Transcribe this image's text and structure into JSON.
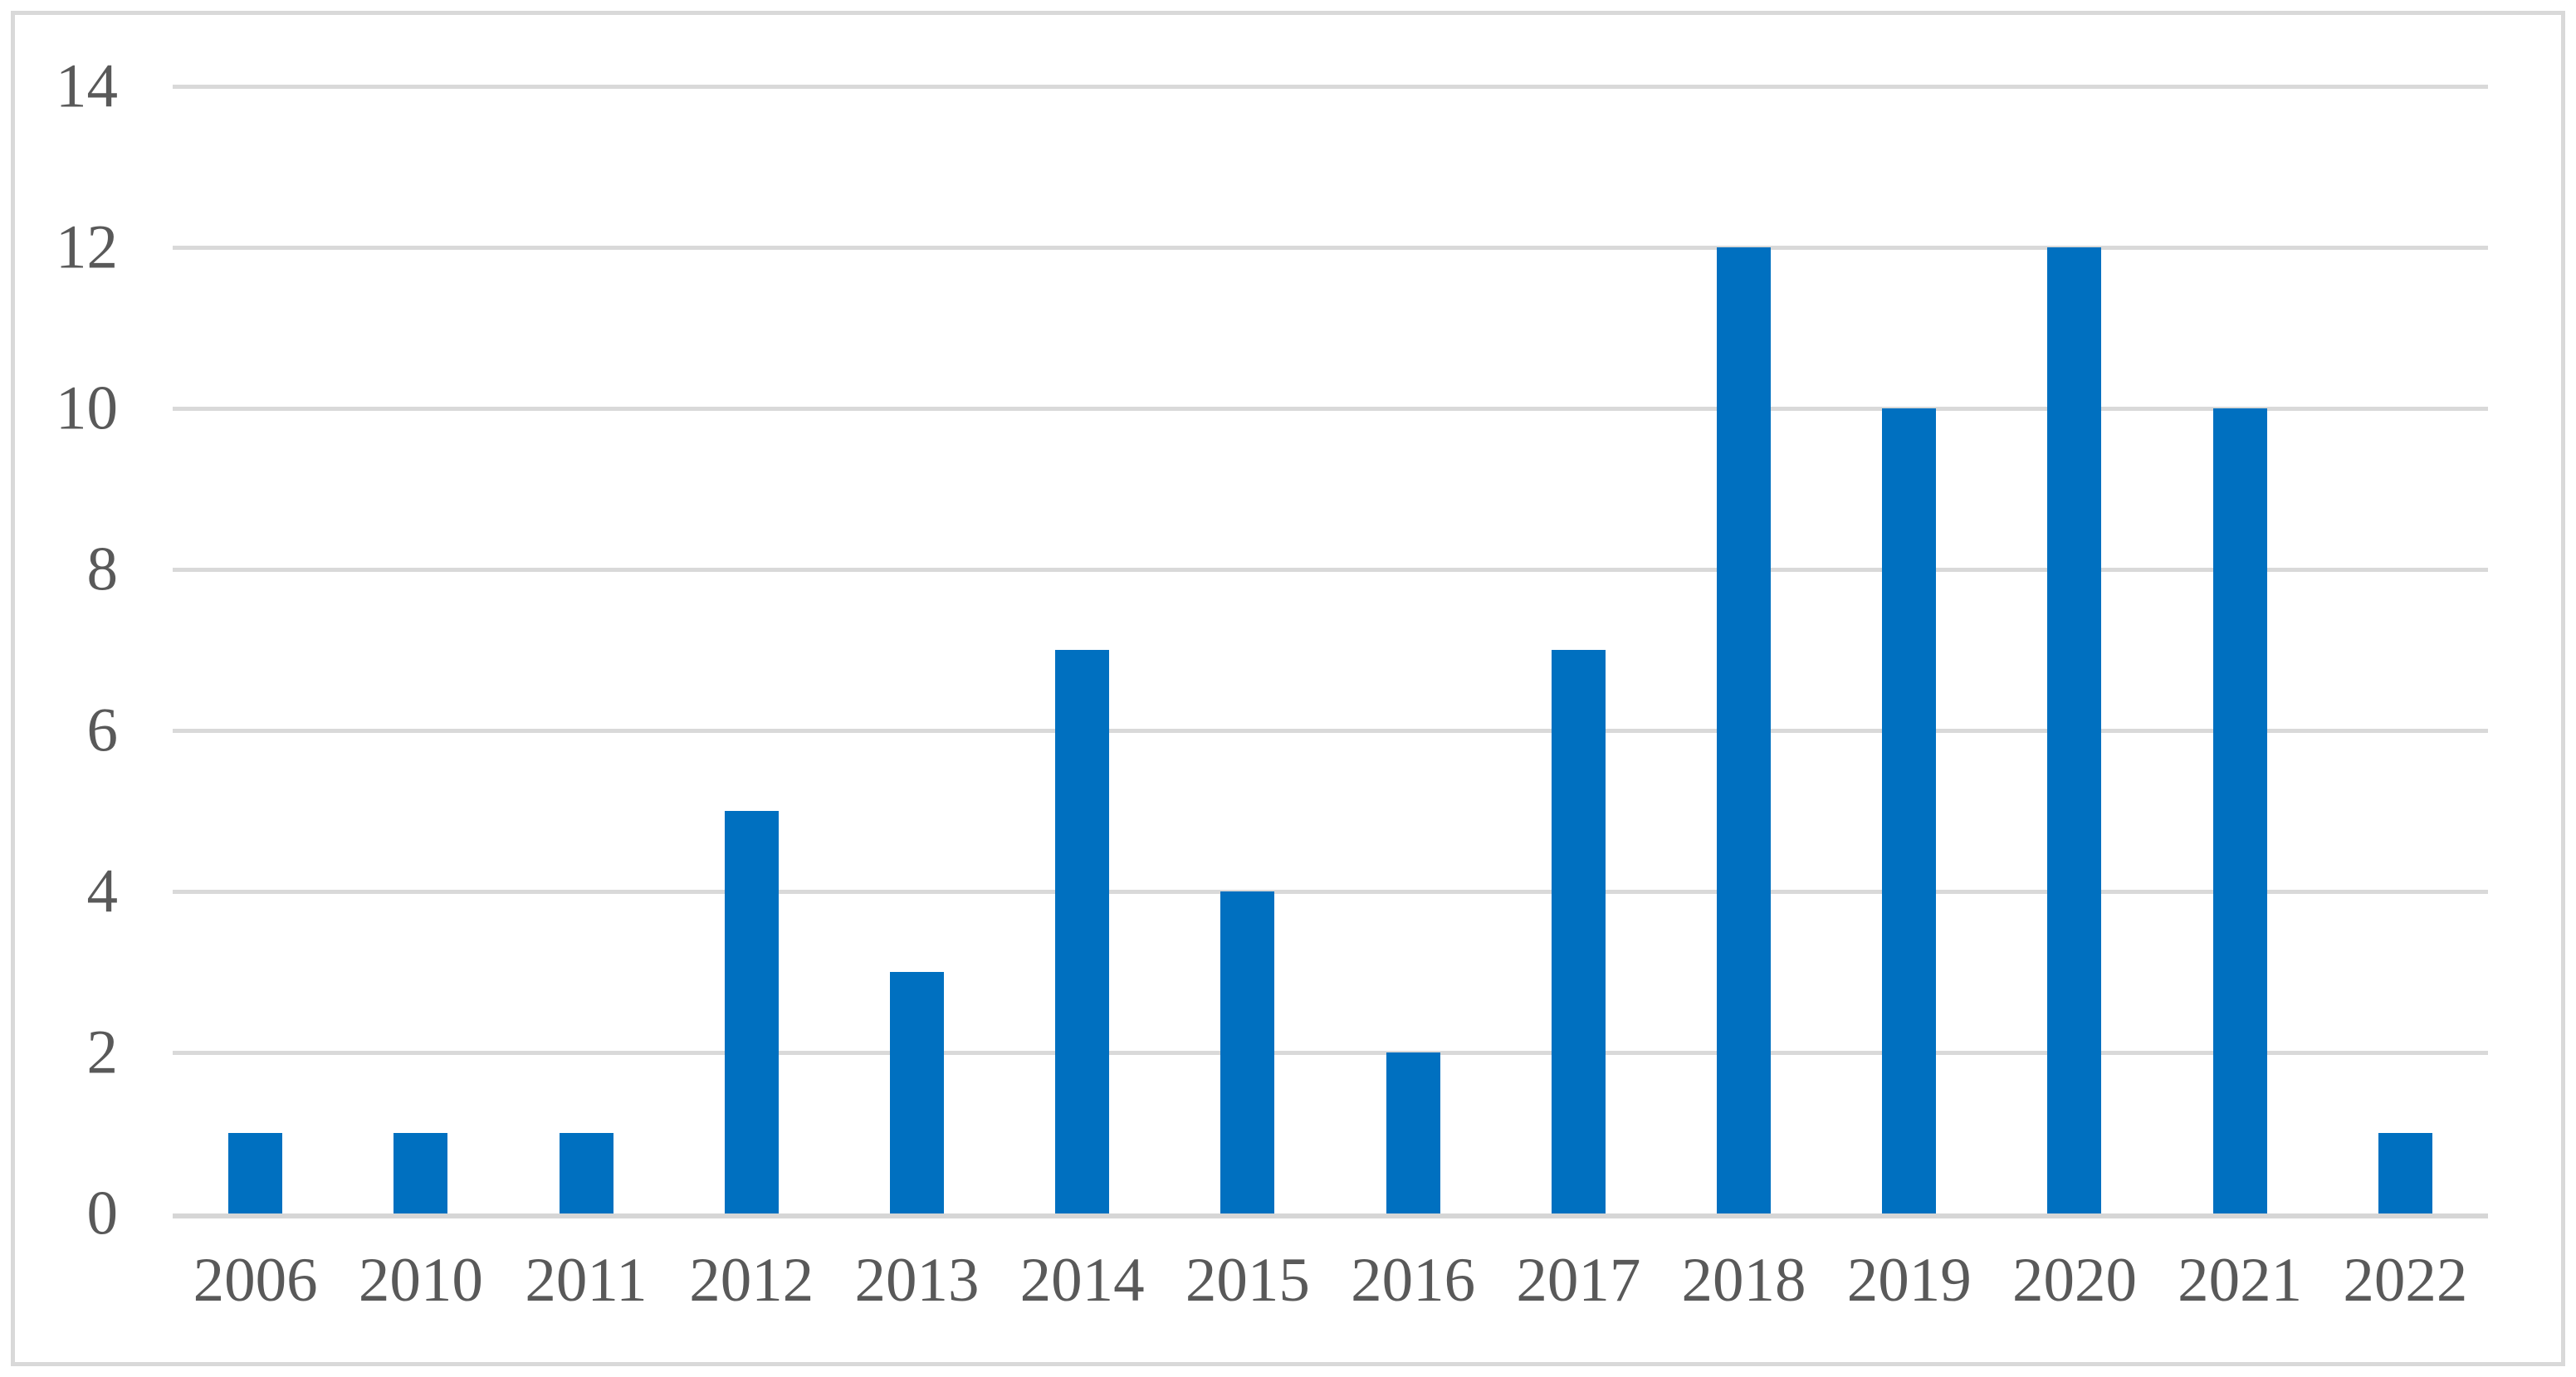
{
  "chart_data": {
    "type": "bar",
    "categories": [
      "2006",
      "2010",
      "2011",
      "2012",
      "2013",
      "2014",
      "2015",
      "2016",
      "2017",
      "2018",
      "2019",
      "2020",
      "2021",
      "2022"
    ],
    "values": [
      1,
      1,
      1,
      5,
      3,
      7,
      4,
      2,
      7,
      12,
      10,
      12,
      10,
      1
    ],
    "title": "",
    "xlabel": "",
    "ylabel": "",
    "ylim": [
      0,
      14
    ],
    "yticks": [
      0,
      2,
      4,
      6,
      8,
      10,
      12,
      14
    ],
    "grid": true,
    "legend": false,
    "bar_color": "#0070c0",
    "gridline_color": "#d9d9d9",
    "axis_line_color": "#d6d6d6",
    "tick_label_color": "#595959",
    "frame_color": "#d9d9d9",
    "background_color": "#ffffff"
  }
}
